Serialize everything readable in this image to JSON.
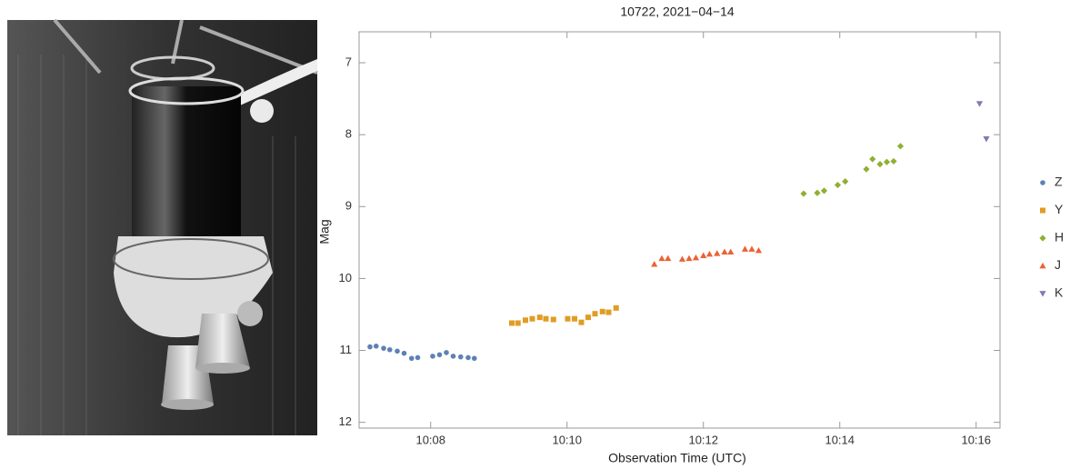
{
  "chart_data": {
    "type": "scatter",
    "title": "10722, 2021−04−14",
    "x_label": "Observation Time (UTC)",
    "y_label": "Mag",
    "xlim": [
      606.95,
      616.35
    ],
    "ylim": [
      6.57,
      12.08
    ],
    "y_inverted": true,
    "xticks": [
      {
        "value": 608,
        "label": "10:08"
      },
      {
        "value": 610,
        "label": "10:10"
      },
      {
        "value": 612,
        "label": "10:12"
      },
      {
        "value": 614,
        "label": "10:14"
      },
      {
        "value": 616,
        "label": "10:16"
      }
    ],
    "yticks": [
      7,
      8,
      9,
      10,
      11,
      12
    ],
    "series": [
      {
        "name": "Z",
        "color": "#5e81b5",
        "marker": "circle",
        "x": [
          607.11,
          607.2,
          607.31,
          607.4,
          607.51,
          607.61,
          607.72,
          607.81,
          608.03,
          608.13,
          608.23,
          608.33,
          608.44,
          608.55,
          608.64
        ],
        "values": [
          10.95,
          10.94,
          10.97,
          10.99,
          11.01,
          11.04,
          11.11,
          11.1,
          11.08,
          11.06,
          11.03,
          11.08,
          11.09,
          11.1,
          11.11
        ]
      },
      {
        "name": "Y",
        "color": "#e19c24",
        "marker": "square",
        "x": [
          609.19,
          609.28,
          609.39,
          609.49,
          609.6,
          609.69,
          609.8,
          610.01,
          610.11,
          610.21,
          610.31,
          610.41,
          610.52,
          610.61,
          610.72
        ],
        "values": [
          10.62,
          10.62,
          10.58,
          10.56,
          10.54,
          10.56,
          10.57,
          10.56,
          10.56,
          10.61,
          10.54,
          10.49,
          10.46,
          10.47,
          10.41
        ]
      },
      {
        "name": "H",
        "color": "#8fb032",
        "marker": "diamond",
        "x": [
          613.47,
          613.67,
          613.77,
          613.97,
          614.08,
          614.39,
          614.48,
          614.59,
          614.69,
          614.79,
          614.89
        ],
        "values": [
          8.82,
          8.81,
          8.78,
          8.7,
          8.65,
          8.48,
          8.34,
          8.41,
          8.38,
          8.37,
          8.16
        ]
      },
      {
        "name": "J",
        "color": "#eb6235",
        "marker": "triangle-up",
        "x": [
          611.28,
          611.39,
          611.48,
          611.69,
          611.79,
          611.89,
          612.0,
          612.09,
          612.2,
          612.31,
          612.4,
          612.61,
          612.71,
          612.81
        ],
        "values": [
          9.8,
          9.72,
          9.72,
          9.73,
          9.72,
          9.71,
          9.68,
          9.66,
          9.65,
          9.63,
          9.63,
          9.59,
          9.59,
          9.61
        ]
      },
      {
        "name": "K",
        "color": "#8778b3",
        "marker": "triangle-down",
        "x": [
          616.05,
          616.15
        ],
        "values": [
          7.57,
          8.06
        ]
      }
    ]
  }
}
